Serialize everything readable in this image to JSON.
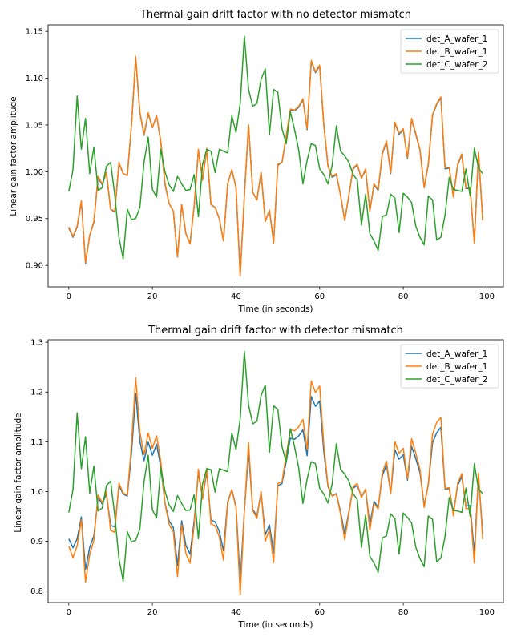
{
  "chart_data": [
    {
      "type": "line",
      "title": "Thermal gain drift factor with no detector mismatch",
      "xlabel": "Time (in seconds)",
      "ylabel": "Linear gain factor amplitude",
      "xlim": [
        -4.95,
        103.95
      ],
      "ylim": [
        0.877,
        1.157
      ],
      "xticks": [
        0,
        20,
        40,
        60,
        80,
        100
      ],
      "yticks": [
        0.9,
        0.95,
        1.0,
        1.05,
        1.1,
        1.15
      ],
      "ytick_format": 2,
      "grid": false,
      "legend_position": "top-right",
      "x": [
        0,
        1,
        2,
        3,
        4,
        5,
        6,
        7,
        8,
        9,
        10,
        11,
        12,
        13,
        14,
        15,
        16,
        17,
        18,
        19,
        20,
        21,
        22,
        23,
        24,
        25,
        26,
        27,
        28,
        29,
        30,
        31,
        32,
        33,
        34,
        35,
        36,
        37,
        38,
        39,
        40,
        41,
        42,
        43,
        44,
        45,
        46,
        47,
        48,
        49,
        50,
        51,
        52,
        53,
        54,
        55,
        56,
        57,
        58,
        59,
        60,
        61,
        62,
        63,
        64,
        65,
        66,
        67,
        68,
        69,
        70,
        71,
        72,
        73,
        74,
        75,
        76,
        77,
        78,
        79,
        80,
        81,
        82,
        83,
        84,
        85,
        86,
        87,
        88,
        89,
        90,
        91,
        92,
        93,
        94,
        95,
        96,
        97,
        98,
        99
      ],
      "series": [
        {
          "name": "det_A_wafer_1",
          "color": "#1f77b4",
          "values": [
            0.94,
            0.93,
            0.941,
            0.968,
            0.902,
            0.932,
            0.946,
            0.994,
            0.986,
            0.999,
            0.96,
            0.957,
            1.009,
            0.998,
            0.996,
            1.05,
            1.122,
            1.063,
            1.039,
            1.062,
            1.047,
            1.06,
            1.032,
            0.987,
            0.966,
            0.958,
            0.909,
            0.965,
            0.934,
            0.923,
            0.964,
            1.023,
            0.991,
            1.024,
            0.965,
            0.962,
            0.95,
            0.926,
            0.987,
            1.002,
            0.983,
            0.889,
            0.974,
            1.05,
            0.978,
            0.97,
            0.999,
            0.947,
            0.959,
            0.924,
            1.007,
            1.01,
            1.037,
            1.066,
            1.065,
            1.069,
            1.077,
            1.045,
            1.118,
            1.106,
            1.113,
            1.05,
            1.006,
            0.994,
            0.997,
            0.975,
            0.948,
            0.975,
            1.003,
            1.007,
            0.993,
            1.002,
            0.958,
            0.986,
            0.98,
            1.019,
            1.032,
            0.998,
            1.052,
            1.04,
            1.045,
            1.014,
            1.056,
            1.04,
            1.023,
            0.983,
            1.008,
            1.06,
            1.072,
            1.079,
            1.003,
            1.004,
            0.973,
            1.007,
            1.018,
            0.982,
            0.982,
            0.924,
            1.02,
            0.949
          ]
        },
        {
          "name": "det_B_wafer_1",
          "color": "#ff7f0e",
          "values": [
            0.941,
            0.931,
            0.942,
            0.969,
            0.903,
            0.932,
            0.947,
            0.995,
            0.987,
            0.999,
            0.96,
            0.958,
            1.01,
            0.998,
            0.996,
            1.05,
            1.123,
            1.064,
            1.04,
            1.063,
            1.047,
            1.06,
            1.033,
            0.988,
            0.966,
            0.958,
            0.909,
            0.965,
            0.934,
            0.923,
            0.964,
            1.024,
            0.991,
            1.025,
            0.965,
            0.962,
            0.95,
            0.926,
            0.987,
            1.002,
            0.983,
            0.889,
            0.975,
            1.05,
            0.978,
            0.97,
            0.999,
            0.947,
            0.959,
            0.924,
            1.008,
            1.01,
            1.038,
            1.067,
            1.066,
            1.07,
            1.078,
            1.046,
            1.119,
            1.107,
            1.114,
            1.051,
            1.006,
            0.995,
            0.998,
            0.975,
            0.948,
            0.975,
            1.004,
            1.008,
            0.993,
            1.003,
            0.958,
            0.987,
            0.981,
            1.02,
            1.033,
            0.999,
            1.053,
            1.041,
            1.046,
            1.015,
            1.057,
            1.041,
            1.024,
            0.983,
            1.009,
            1.061,
            1.073,
            1.08,
            1.004,
            1.005,
            0.973,
            1.008,
            1.019,
            0.983,
            0.983,
            0.924,
            1.021,
            0.948
          ]
        },
        {
          "name": "det_C_wafer_2",
          "color": "#2ca02c",
          "values": [
            0.979,
            1.002,
            1.081,
            1.024,
            1.057,
            0.998,
            1.026,
            0.98,
            0.983,
            1.006,
            1.01,
            0.975,
            0.93,
            0.907,
            0.96,
            0.949,
            0.95,
            0.962,
            1.01,
            1.037,
            0.981,
            0.973,
            1.024,
            1.0,
            0.986,
            0.979,
            0.995,
            0.987,
            0.98,
            0.981,
            0.997,
            0.952,
            1.008,
            1.024,
            1.022,
            0.999,
            1.024,
            1.022,
            1.02,
            1.06,
            1.042,
            1.073,
            1.145,
            1.088,
            1.07,
            1.073,
            1.099,
            1.11,
            1.04,
            1.088,
            1.085,
            1.046,
            1.03,
            1.064,
            1.045,
            1.023,
            0.987,
            1.012,
            1.03,
            1.028,
            1.003,
            0.997,
            0.987,
            1.007,
            1.049,
            1.022,
            1.017,
            1.01,
            0.997,
            0.991,
            0.943,
            0.976,
            0.934,
            0.926,
            0.916,
            0.952,
            0.954,
            0.976,
            0.972,
            0.935,
            0.977,
            0.973,
            0.967,
            0.942,
            0.93,
            0.922,
            0.974,
            0.97,
            0.927,
            0.93,
            0.954,
            0.994,
            0.981,
            0.98,
            0.979,
            1.003,
            0.974,
            1.025,
            1.004,
            0.998
          ]
        }
      ]
    },
    {
      "type": "line",
      "title": "Thermal gain drift factor with detector mismatch",
      "xlabel": "Time (in seconds)",
      "ylabel": "Linear gain factor amplitude",
      "xlim": [
        -4.95,
        103.95
      ],
      "ylim": [
        0.777,
        1.305
      ],
      "xticks": [
        0,
        20,
        40,
        60,
        80,
        100
      ],
      "yticks": [
        0.8,
        0.9,
        1.0,
        1.1,
        1.2,
        1.3
      ],
      "ytick_format": 1,
      "grid": false,
      "legend_position": "top-right",
      "x": [
        0,
        1,
        2,
        3,
        4,
        5,
        6,
        7,
        8,
        9,
        10,
        11,
        12,
        13,
        14,
        15,
        16,
        17,
        18,
        19,
        20,
        21,
        22,
        23,
        24,
        25,
        26,
        27,
        28,
        29,
        30,
        31,
        32,
        33,
        34,
        35,
        36,
        37,
        38,
        39,
        40,
        41,
        42,
        43,
        44,
        45,
        46,
        47,
        48,
        49,
        50,
        51,
        52,
        53,
        54,
        55,
        56,
        57,
        58,
        59,
        60,
        61,
        62,
        63,
        64,
        65,
        66,
        67,
        68,
        69,
        70,
        71,
        72,
        73,
        74,
        75,
        76,
        77,
        78,
        79,
        80,
        81,
        82,
        83,
        84,
        85,
        86,
        87,
        88,
        89,
        90,
        91,
        92,
        93,
        94,
        95,
        96,
        97,
        98,
        99
      ],
      "series": [
        {
          "name": "det_A_wafer_1",
          "color": "#1f77b4",
          "values": [
            0.905,
            0.887,
            0.905,
            0.949,
            0.843,
            0.888,
            0.911,
            0.988,
            0.975,
            0.995,
            0.932,
            0.929,
            1.012,
            0.995,
            0.991,
            1.078,
            1.197,
            1.101,
            1.062,
            1.099,
            1.073,
            1.095,
            1.05,
            0.977,
            0.941,
            0.928,
            0.851,
            0.941,
            0.892,
            0.874,
            0.942,
            1.038,
            0.986,
            1.04,
            0.943,
            0.939,
            0.92,
            0.881,
            0.979,
            1.004,
            0.97,
            0.819,
            0.961,
            1.08,
            0.964,
            0.951,
            0.998,
            0.913,
            0.933,
            0.876,
            1.012,
            1.016,
            1.06,
            1.107,
            1.105,
            1.112,
            1.124,
            1.072,
            1.191,
            1.171,
            1.182,
            1.08,
            1.01,
            0.991,
            0.996,
            0.959,
            0.915,
            0.959,
            1.007,
            1.012,
            0.99,
            1.004,
            0.933,
            0.98,
            0.969,
            1.032,
            1.054,
            0.997,
            1.084,
            1.065,
            1.074,
            1.023,
            1.091,
            1.066,
            1.038,
            0.972,
            1.014,
            1.098,
            1.118,
            1.129,
            1.005,
            1.006,
            0.957,
            1.012,
            1.03,
            0.971,
            0.972,
            0.876,
            1.032,
            0.915
          ]
        },
        {
          "name": "det_B_wafer_1",
          "color": "#ff7f0e",
          "values": [
            0.89,
            0.867,
            0.891,
            0.943,
            0.818,
            0.873,
            0.902,
            0.993,
            0.978,
            1.0,
            0.922,
            0.918,
            1.017,
            0.997,
            0.993,
            1.095,
            1.229,
            1.119,
            1.074,
            1.117,
            1.087,
            1.112,
            1.061,
            0.976,
            0.934,
            0.919,
            0.829,
            0.933,
            0.876,
            0.856,
            0.933,
            1.045,
            0.985,
            1.047,
            0.935,
            0.931,
            0.909,
            0.862,
            0.976,
            1.004,
            0.967,
            0.792,
            0.959,
            1.098,
            0.962,
            0.946,
            1.0,
            0.9,
            0.924,
            0.857,
            1.016,
            1.02,
            1.073,
            1.124,
            1.122,
            1.13,
            1.145,
            1.085,
            1.222,
            1.199,
            1.212,
            1.094,
            1.012,
            0.991,
            0.995,
            0.955,
            0.903,
            0.956,
            1.01,
            1.016,
            0.988,
            1.005,
            0.922,
            0.976,
            0.965,
            1.039,
            1.061,
            0.996,
            1.1,
            1.077,
            1.087,
            1.026,
            1.106,
            1.077,
            1.045,
            0.968,
            1.016,
            1.115,
            1.139,
            1.149,
            1.006,
            1.008,
            0.951,
            1.016,
            1.036,
            0.966,
            0.966,
            0.856,
            1.037,
            0.904
          ]
        },
        {
          "name": "det_C_wafer_2",
          "color": "#2ca02c",
          "values": [
            0.958,
            1.004,
            1.158,
            1.046,
            1.11,
            0.997,
            1.051,
            0.961,
            0.967,
            1.012,
            1.021,
            0.951,
            0.865,
            0.82,
            0.919,
            0.899,
            0.902,
            0.925,
            1.02,
            1.073,
            0.963,
            0.947,
            1.048,
            1.001,
            0.973,
            0.96,
            0.992,
            0.976,
            0.962,
            0.963,
            0.994,
            0.905,
            1.016,
            1.046,
            1.044,
            0.999,
            1.046,
            1.043,
            1.04,
            1.118,
            1.084,
            1.146,
            1.282,
            1.174,
            1.136,
            1.141,
            1.193,
            1.214,
            1.079,
            1.172,
            1.165,
            1.09,
            1.06,
            1.126,
            1.09,
            1.047,
            0.976,
            1.025,
            1.06,
            1.056,
            1.007,
            0.995,
            0.977,
            1.016,
            1.096,
            1.045,
            1.035,
            1.021,
            0.996,
            0.984,
            0.888,
            0.953,
            0.87,
            0.856,
            0.838,
            0.907,
            0.911,
            0.955,
            0.946,
            0.874,
            0.957,
            0.948,
            0.937,
            0.888,
            0.865,
            0.849,
            0.951,
            0.944,
            0.859,
            0.866,
            0.91,
            0.988,
            0.962,
            0.961,
            0.958,
            1.007,
            0.95,
            1.056,
            1.005,
            0.996
          ]
        }
      ]
    }
  ]
}
